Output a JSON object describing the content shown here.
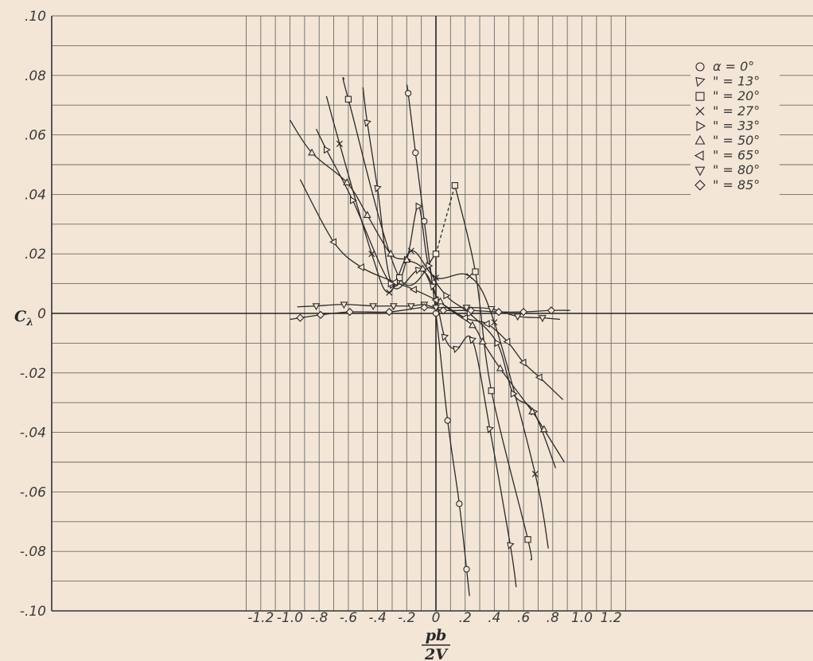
{
  "chart_data": {
    "type": "line",
    "title": "",
    "ylabel": "C",
    "ylabel_sub": "λ",
    "xlabel_num": "pb",
    "xlabel_den": "2V",
    "xlim": [
      -1.3,
      1.3
    ],
    "ylim": [
      -0.1,
      0.1
    ],
    "grid": true,
    "legend_position": "top-right",
    "x_ticks": [
      {
        "v": -1.2,
        "label": "-1.2"
      },
      {
        "v": -1.0,
        "label": "-1.0"
      },
      {
        "v": -0.8,
        "label": "-.8"
      },
      {
        "v": -0.6,
        "label": "-.6"
      },
      {
        "v": -0.4,
        "label": "-.4"
      },
      {
        "v": -0.2,
        "label": "-.2"
      },
      {
        "v": 0.0,
        "label": "0"
      },
      {
        "v": 0.2,
        "label": ".2"
      },
      {
        "v": 0.4,
        "label": ".4"
      },
      {
        "v": 0.6,
        "label": ".6"
      },
      {
        "v": 0.8,
        "label": ".8"
      },
      {
        "v": 1.0,
        "label": "1.0"
      },
      {
        "v": 1.2,
        "label": "1.2"
      }
    ],
    "y_ticks": [
      {
        "v": 0.1,
        "label": ".10"
      },
      {
        "v": 0.08,
        "label": ".08"
      },
      {
        "v": 0.06,
        "label": ".06"
      },
      {
        "v": 0.04,
        "label": ".04"
      },
      {
        "v": 0.02,
        "label": ".02"
      },
      {
        "v": 0.0,
        "label": "0"
      },
      {
        "v": -0.02,
        "label": "-.02"
      },
      {
        "v": -0.04,
        "label": "-.04"
      },
      {
        "v": -0.06,
        "label": "-.06"
      },
      {
        "v": -0.08,
        "label": "-.08"
      },
      {
        "v": -0.1,
        "label": "-.10"
      }
    ],
    "series": [
      {
        "name": "α =  0°",
        "marker": "circle",
        "points": [
          [
            -0.19,
            0.074
          ],
          [
            -0.14,
            0.054
          ],
          [
            -0.08,
            0.031
          ],
          [
            0.0,
            0.0
          ],
          [
            0.08,
            -0.036
          ],
          [
            0.16,
            -0.064
          ],
          [
            0.21,
            -0.086
          ]
        ],
        "line_to": [
          0.23,
          -0.095
        ],
        "line_from": [
          -0.2,
          0.077
        ]
      },
      {
        "name": "\" = 13°",
        "marker": "tri-down-left",
        "points": [
          [
            -0.47,
            0.064
          ],
          [
            -0.4,
            0.042
          ],
          [
            -0.3,
            0.0095
          ],
          [
            -0.12,
            0.0145
          ],
          [
            -0.02,
            0.009
          ],
          [
            0.06,
            -0.008
          ],
          [
            0.14,
            -0.012
          ],
          [
            0.25,
            -0.009
          ],
          [
            0.37,
            -0.039
          ],
          [
            0.51,
            -0.078
          ]
        ],
        "line_from": [
          -0.5,
          0.076
        ],
        "line_to": [
          0.55,
          -0.092
        ]
      },
      {
        "name": "\" = 20°",
        "marker": "square",
        "points": [
          [
            -0.6,
            0.072
          ],
          [
            -0.25,
            0.012
          ],
          [
            0.0,
            0.02
          ],
          [
            0.13,
            0.043
          ],
          [
            0.27,
            0.014
          ],
          [
            0.38,
            -0.026
          ],
          [
            0.63,
            -0.076
          ]
        ],
        "line_from": [
          -0.63,
          0.079
        ],
        "line_to": [
          0.65,
          -0.083
        ],
        "dashed_segment": [
          [
            -0.0,
            0.02
          ],
          [
            0.13,
            0.043
          ]
        ]
      },
      {
        "name": "\" = 27°",
        "marker": "x",
        "points": [
          [
            -0.66,
            0.057
          ],
          [
            -0.44,
            0.02
          ],
          [
            -0.32,
            0.007
          ],
          [
            -0.17,
            0.021
          ],
          [
            0.0,
            0.012
          ],
          [
            0.23,
            0.0125
          ],
          [
            0.4,
            -0.003
          ],
          [
            0.68,
            -0.054
          ]
        ],
        "line_from": [
          -0.75,
          0.073
        ],
        "line_to": [
          0.77,
          -0.079
        ]
      },
      {
        "name": "\" = 33°",
        "marker": "tri-right",
        "points": [
          [
            -0.75,
            0.055
          ],
          [
            -0.57,
            0.038
          ],
          [
            -0.31,
            0.01
          ],
          [
            -0.2,
            0.018
          ],
          [
            -0.12,
            0.036
          ],
          [
            -0.05,
            0.016
          ],
          [
            0.07,
            0.006
          ],
          [
            0.23,
            0.0
          ],
          [
            0.42,
            -0.01
          ],
          [
            0.53,
            -0.027
          ],
          [
            0.67,
            -0.033
          ]
        ],
        "line_from": [
          -0.82,
          0.062
        ],
        "line_to": [
          0.82,
          -0.052
        ]
      },
      {
        "name": "\" = 50°",
        "marker": "triangle-up",
        "points": [
          [
            -0.85,
            0.054
          ],
          [
            -0.61,
            0.044
          ],
          [
            -0.47,
            0.033
          ],
          [
            -0.31,
            0.02
          ],
          [
            -0.2,
            0.018
          ],
          [
            -0.09,
            0.015
          ],
          [
            0.03,
            0.004
          ],
          [
            0.25,
            -0.004
          ],
          [
            0.32,
            -0.0095
          ],
          [
            0.44,
            -0.0185
          ],
          [
            0.66,
            -0.033
          ],
          [
            0.74,
            -0.039
          ]
        ],
        "line_from": [
          -1.0,
          0.065
        ],
        "line_to": [
          0.88,
          -0.05
        ]
      },
      {
        "name": "\" = 65°",
        "marker": "tri-left",
        "points": [
          [
            -0.7,
            0.024
          ],
          [
            -0.51,
            0.0155
          ],
          [
            -0.28,
            0.0105
          ],
          [
            -0.15,
            0.008
          ],
          [
            0.0,
            0.0045
          ],
          [
            0.2,
            -0.0015
          ],
          [
            0.35,
            -0.0035
          ],
          [
            0.49,
            -0.0095
          ],
          [
            0.6,
            -0.0165
          ],
          [
            0.71,
            -0.0215
          ]
        ],
        "line_from": [
          -0.93,
          0.045
        ],
        "line_to": [
          0.87,
          -0.029
        ]
      },
      {
        "name": "\" = 80°",
        "marker": "tri-down",
        "points": [
          [
            -0.82,
            0.0025
          ],
          [
            -0.63,
            0.003
          ],
          [
            -0.43,
            0.0025
          ],
          [
            -0.29,
            0.0025
          ],
          [
            -0.17,
            0.0025
          ],
          [
            -0.08,
            0.003
          ],
          [
            0.0,
            0.002
          ],
          [
            0.21,
            0.002
          ],
          [
            0.38,
            0.0015
          ],
          [
            0.56,
            -0.001
          ],
          [
            0.73,
            -0.0015
          ]
        ],
        "line_from": [
          -0.95,
          0.0022
        ],
        "line_to": [
          0.85,
          -0.002
        ]
      },
      {
        "name": "\" = 85°",
        "marker": "diamond",
        "points": [
          [
            -0.93,
            -0.0015
          ],
          [
            -0.79,
            -0.0005
          ],
          [
            -0.59,
            0.0005
          ],
          [
            -0.32,
            0.0005
          ],
          [
            -0.08,
            0.002
          ],
          [
            0.05,
            0.001
          ],
          [
            0.24,
            0.001
          ],
          [
            0.43,
            0.0005
          ],
          [
            0.6,
            0.0005
          ],
          [
            0.79,
            0.001
          ]
        ],
        "line_from": [
          -1.0,
          -0.002
        ],
        "line_to": [
          0.92,
          0.001
        ]
      }
    ]
  }
}
